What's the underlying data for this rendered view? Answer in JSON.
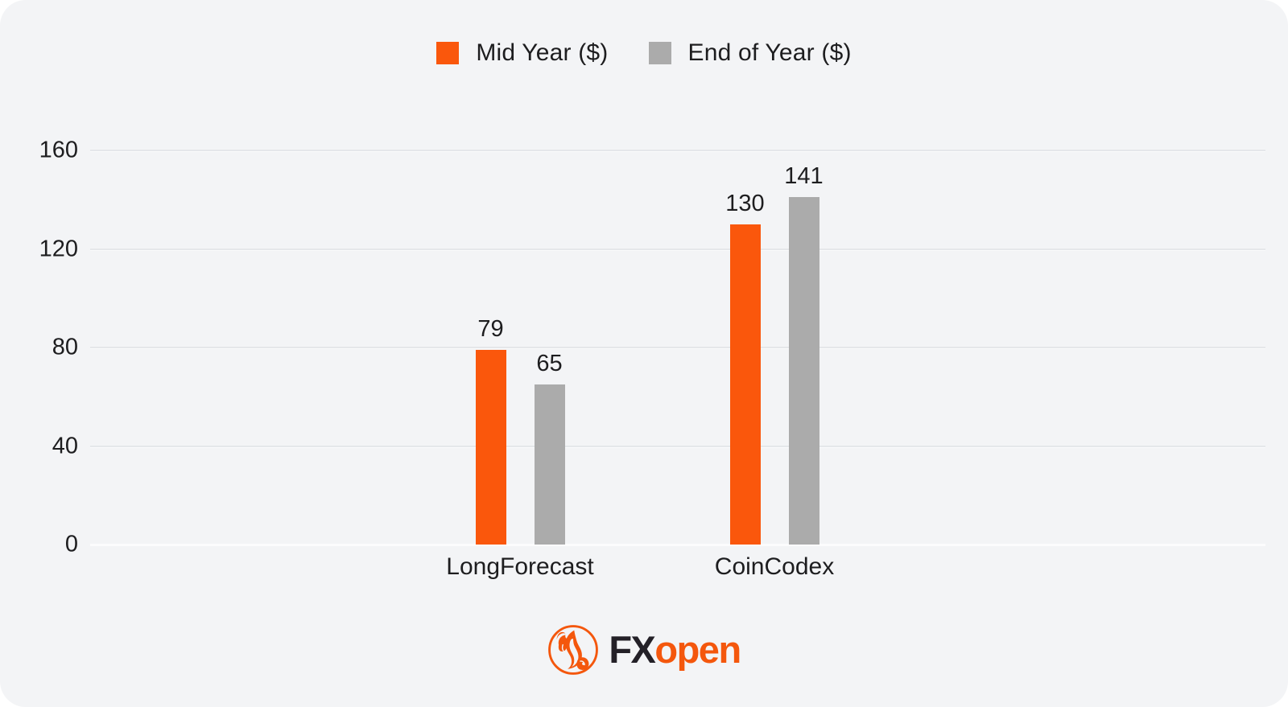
{
  "legend": {
    "items": [
      {
        "label": "Mid Year ($)",
        "color": "#FA570C",
        "icon": "orange-square-swatch-icon"
      },
      {
        "label": "End of Year ($)",
        "color": "#ABABAB",
        "icon": "gray-square-swatch-icon"
      }
    ]
  },
  "chart_data": {
    "type": "bar",
    "title": "",
    "categories": [
      "LongForecast",
      "CoinCodex"
    ],
    "series": [
      {
        "name": "Mid Year ($)",
        "color": "#FA570C",
        "values": [
          79,
          130
        ]
      },
      {
        "name": "End of Year ($)",
        "color": "#ABABAB",
        "values": [
          65,
          141
        ]
      }
    ],
    "xlabel": "",
    "ylabel": "",
    "ylim": [
      0,
      160
    ],
    "yticks": [
      0,
      40,
      80,
      120,
      160
    ],
    "grid": true,
    "show_value_labels": true,
    "legend_position": "top-center"
  },
  "branding": {
    "emblem_icon": "fxopen-bull-emblem-icon",
    "wordmark_fx": "FX",
    "wordmark_open": "open",
    "fx_color": "#232027",
    "open_color": "#F4570D"
  },
  "theme": {
    "page_bg": "#FFFFFF",
    "card_bg": "#F3F4F6",
    "gridline_color": "#E5E7EA",
    "baseline_color": "#FCFCFD",
    "text_color": "#1D1D1F"
  }
}
